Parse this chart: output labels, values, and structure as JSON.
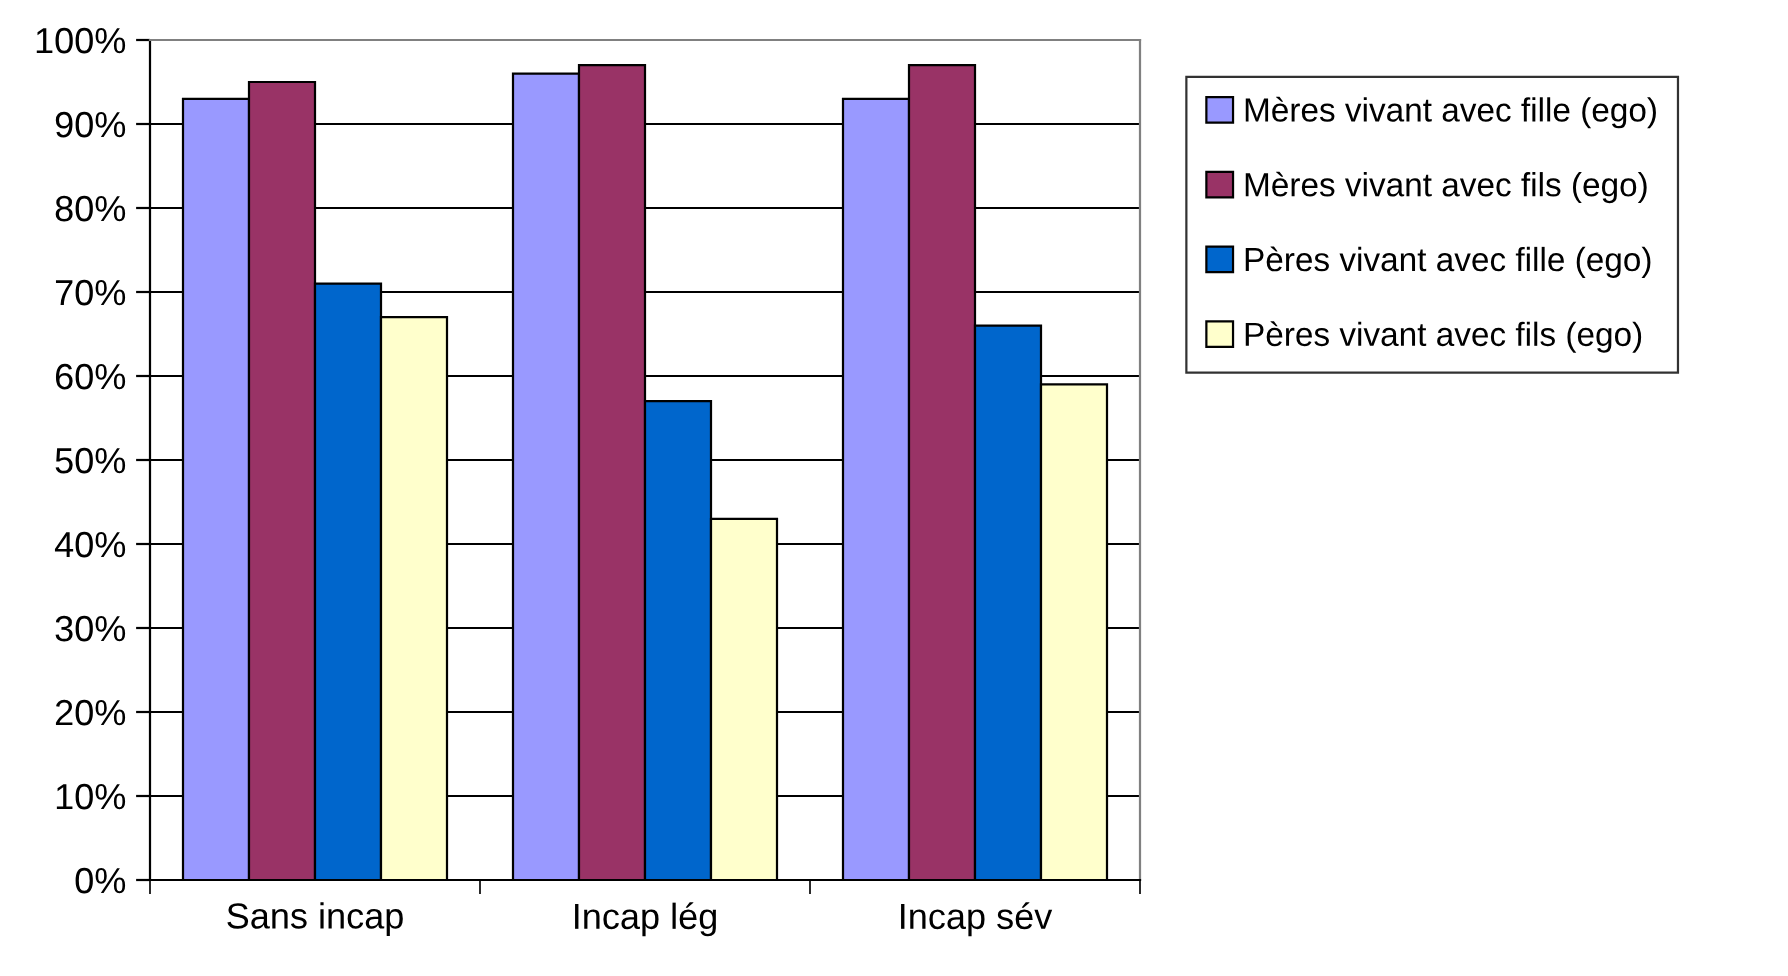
{
  "chart_data": {
    "type": "bar",
    "categories": [
      "Sans incap",
      "Incap lég",
      "Incap sév"
    ],
    "series": [
      {
        "name": "Mères vivant avec fille (ego)",
        "color": "#9999ff",
        "values": [
          93,
          96,
          93
        ]
      },
      {
        "name": "Mères vivant avec fils (ego)",
        "color": "#993366",
        "values": [
          95,
          97,
          97
        ]
      },
      {
        "name": "Pères vivant avec fille (ego)",
        "color": "#0066cc",
        "values": [
          71,
          57,
          66
        ]
      },
      {
        "name": "Pères vivant avec fils (ego)",
        "color": "#ffffcc",
        "values": [
          67,
          43,
          59
        ]
      }
    ],
    "ylim": [
      0,
      100
    ],
    "yticks": [
      {
        "value": 0,
        "label": "0%"
      },
      {
        "value": 10,
        "label": "10%"
      },
      {
        "value": 20,
        "label": "20%"
      },
      {
        "value": 30,
        "label": "30%"
      },
      {
        "value": 40,
        "label": "40%"
      },
      {
        "value": 50,
        "label": "50%"
      },
      {
        "value": 60,
        "label": "60%"
      },
      {
        "value": 70,
        "label": "70%"
      },
      {
        "value": 80,
        "label": "80%"
      },
      {
        "value": 90,
        "label": "90%"
      },
      {
        "value": 100,
        "label": "100%"
      }
    ],
    "grid": "y",
    "legend": "right"
  }
}
